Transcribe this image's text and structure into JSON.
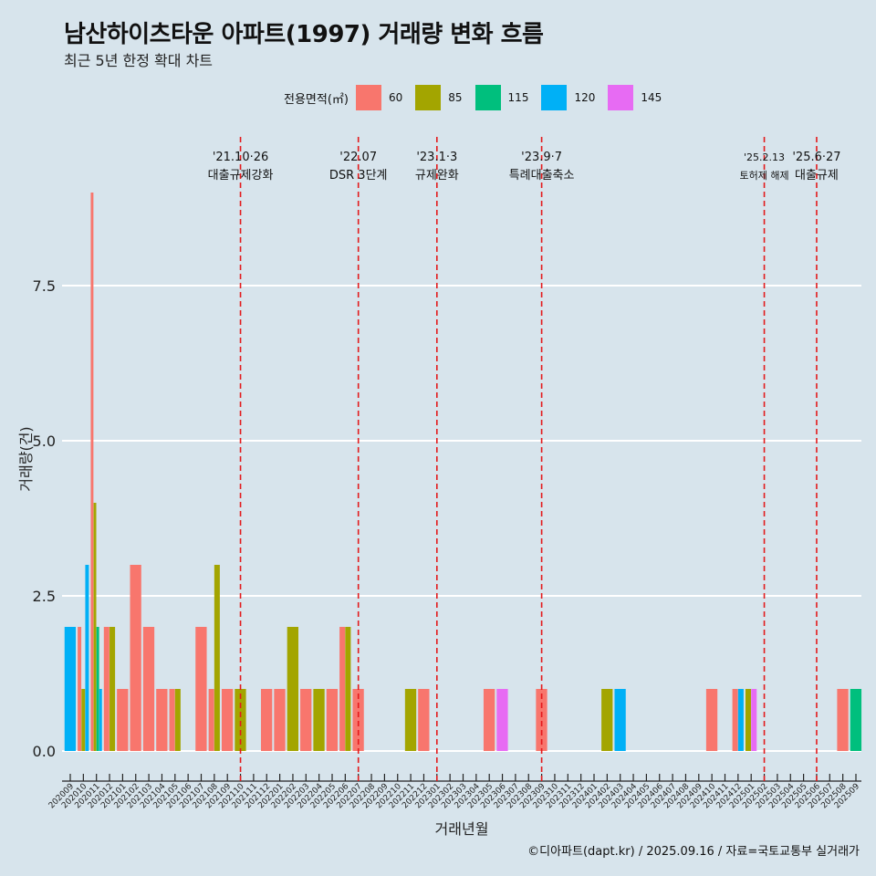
{
  "header": {
    "title": "남산하이츠타운 아파트(1997) 거래량 변화 흐름",
    "subtitle": "최근 5년 한정 확대 차트"
  },
  "legend": {
    "title": "전용면적(㎡)",
    "items": [
      {
        "label": "60",
        "color": "#f8766d"
      },
      {
        "label": "85",
        "color": "#a3a500"
      },
      {
        "label": "115",
        "color": "#00bf7d"
      },
      {
        "label": "120",
        "color": "#00b0f6"
      },
      {
        "label": "145",
        "color": "#e76bf3"
      }
    ]
  },
  "caption": "©디아파트(dapt.kr) / 2025.09.16 / 자료=국토교통부 실거래가",
  "chart_data": {
    "type": "bar",
    "xlabel": "거래년월",
    "ylabel": "거래량(건)",
    "ylim": [
      0,
      9
    ],
    "yticks": [
      "0.0",
      "2.5",
      "5.0",
      "7.5"
    ],
    "grid": true,
    "categories": [
      "202009",
      "202010",
      "202011",
      "202012",
      "202101",
      "202102",
      "202103",
      "202104",
      "202105",
      "202106",
      "202107",
      "202108",
      "202109",
      "202110",
      "202111",
      "202112",
      "202201",
      "202202",
      "202203",
      "202204",
      "202205",
      "202206",
      "202207",
      "202208",
      "202209",
      "202210",
      "202211",
      "202212",
      "202301",
      "202302",
      "202303",
      "202304",
      "202305",
      "202306",
      "202307",
      "202308",
      "202309",
      "202310",
      "202311",
      "202312",
      "202401",
      "202402",
      "202403",
      "202404",
      "202405",
      "202406",
      "202407",
      "202408",
      "202409",
      "202410",
      "202411",
      "202412",
      "202501",
      "202502",
      "202503",
      "202504",
      "202505",
      "202506",
      "202507",
      "202508",
      "202509"
    ],
    "series": [
      {
        "name": "60",
        "values": [
          0,
          2,
          9,
          2,
          1,
          3,
          2,
          1,
          1,
          0,
          2,
          1,
          1,
          0,
          0,
          1,
          1,
          0,
          1,
          0,
          1,
          2,
          1,
          0,
          0,
          0,
          0,
          1,
          0,
          0,
          0,
          0,
          1,
          0,
          0,
          0,
          1,
          0,
          0,
          0,
          0,
          0,
          0,
          0,
          0,
          0,
          0,
          0,
          0,
          1,
          0,
          1,
          0,
          0,
          0,
          0,
          0,
          0,
          0,
          1,
          0
        ]
      },
      {
        "name": "85",
        "values": [
          0,
          1,
          4,
          2,
          0,
          0,
          0,
          0,
          1,
          0,
          0,
          3,
          0,
          1,
          0,
          0,
          0,
          2,
          0,
          1,
          0,
          2,
          0,
          0,
          0,
          0,
          1,
          0,
          0,
          0,
          0,
          0,
          0,
          0,
          0,
          0,
          0,
          0,
          0,
          0,
          0,
          1,
          0,
          0,
          0,
          0,
          0,
          0,
          0,
          0,
          0,
          0,
          1,
          0,
          0,
          0,
          0,
          0,
          0,
          0,
          0
        ]
      },
      {
        "name": "115",
        "values": [
          0,
          0,
          2,
          0,
          0,
          0,
          0,
          0,
          0,
          0,
          0,
          0,
          0,
          0,
          0,
          0,
          0,
          0,
          0,
          0,
          0,
          0,
          0,
          0,
          0,
          0,
          0,
          0,
          0,
          0,
          0,
          0,
          0,
          0,
          0,
          0,
          0,
          0,
          0,
          0,
          0,
          0,
          0,
          0,
          0,
          0,
          0,
          0,
          0,
          0,
          0,
          0,
          0,
          0,
          0,
          0,
          0,
          0,
          0,
          0,
          1
        ]
      },
      {
        "name": "120",
        "values": [
          2,
          3,
          1,
          0,
          0,
          0,
          0,
          0,
          0,
          0,
          0,
          0,
          0,
          0,
          0,
          0,
          0,
          0,
          0,
          0,
          0,
          0,
          0,
          0,
          0,
          0,
          0,
          0,
          0,
          0,
          0,
          0,
          0,
          0,
          0,
          0,
          0,
          0,
          0,
          0,
          0,
          0,
          1,
          0,
          0,
          0,
          0,
          0,
          0,
          0,
          0,
          1,
          0,
          0,
          0,
          0,
          0,
          0,
          0,
          0,
          0
        ]
      },
      {
        "name": "145",
        "values": [
          0,
          0,
          0,
          0,
          0,
          0,
          0,
          0,
          0,
          0,
          0,
          0,
          0,
          0,
          0,
          0,
          0,
          0,
          0,
          0,
          0,
          0,
          0,
          0,
          0,
          0,
          0,
          0,
          0,
          0,
          0,
          0,
          0,
          1,
          0,
          0,
          0,
          0,
          0,
          0,
          0,
          0,
          0,
          0,
          0,
          0,
          0,
          0,
          0,
          0,
          0,
          0,
          1,
          0,
          0,
          0,
          0,
          0,
          0,
          0,
          0
        ]
      }
    ],
    "events": [
      {
        "date": "'21.10·26",
        "label": "대출규제강화",
        "month": "202110"
      },
      {
        "date": "'22.07",
        "label": "DSR 3단계",
        "month": "202207"
      },
      {
        "date": "'23.1·3",
        "label": "규제완화",
        "month": "202301"
      },
      {
        "date": "'23.9·7",
        "label": "특례대출축소",
        "month": "202309"
      },
      {
        "date": "'25.2.13",
        "label": "토허제 해제",
        "month": "202502"
      },
      {
        "date": "'25.6·27",
        "label": "대출규제",
        "month": "202506"
      }
    ]
  }
}
